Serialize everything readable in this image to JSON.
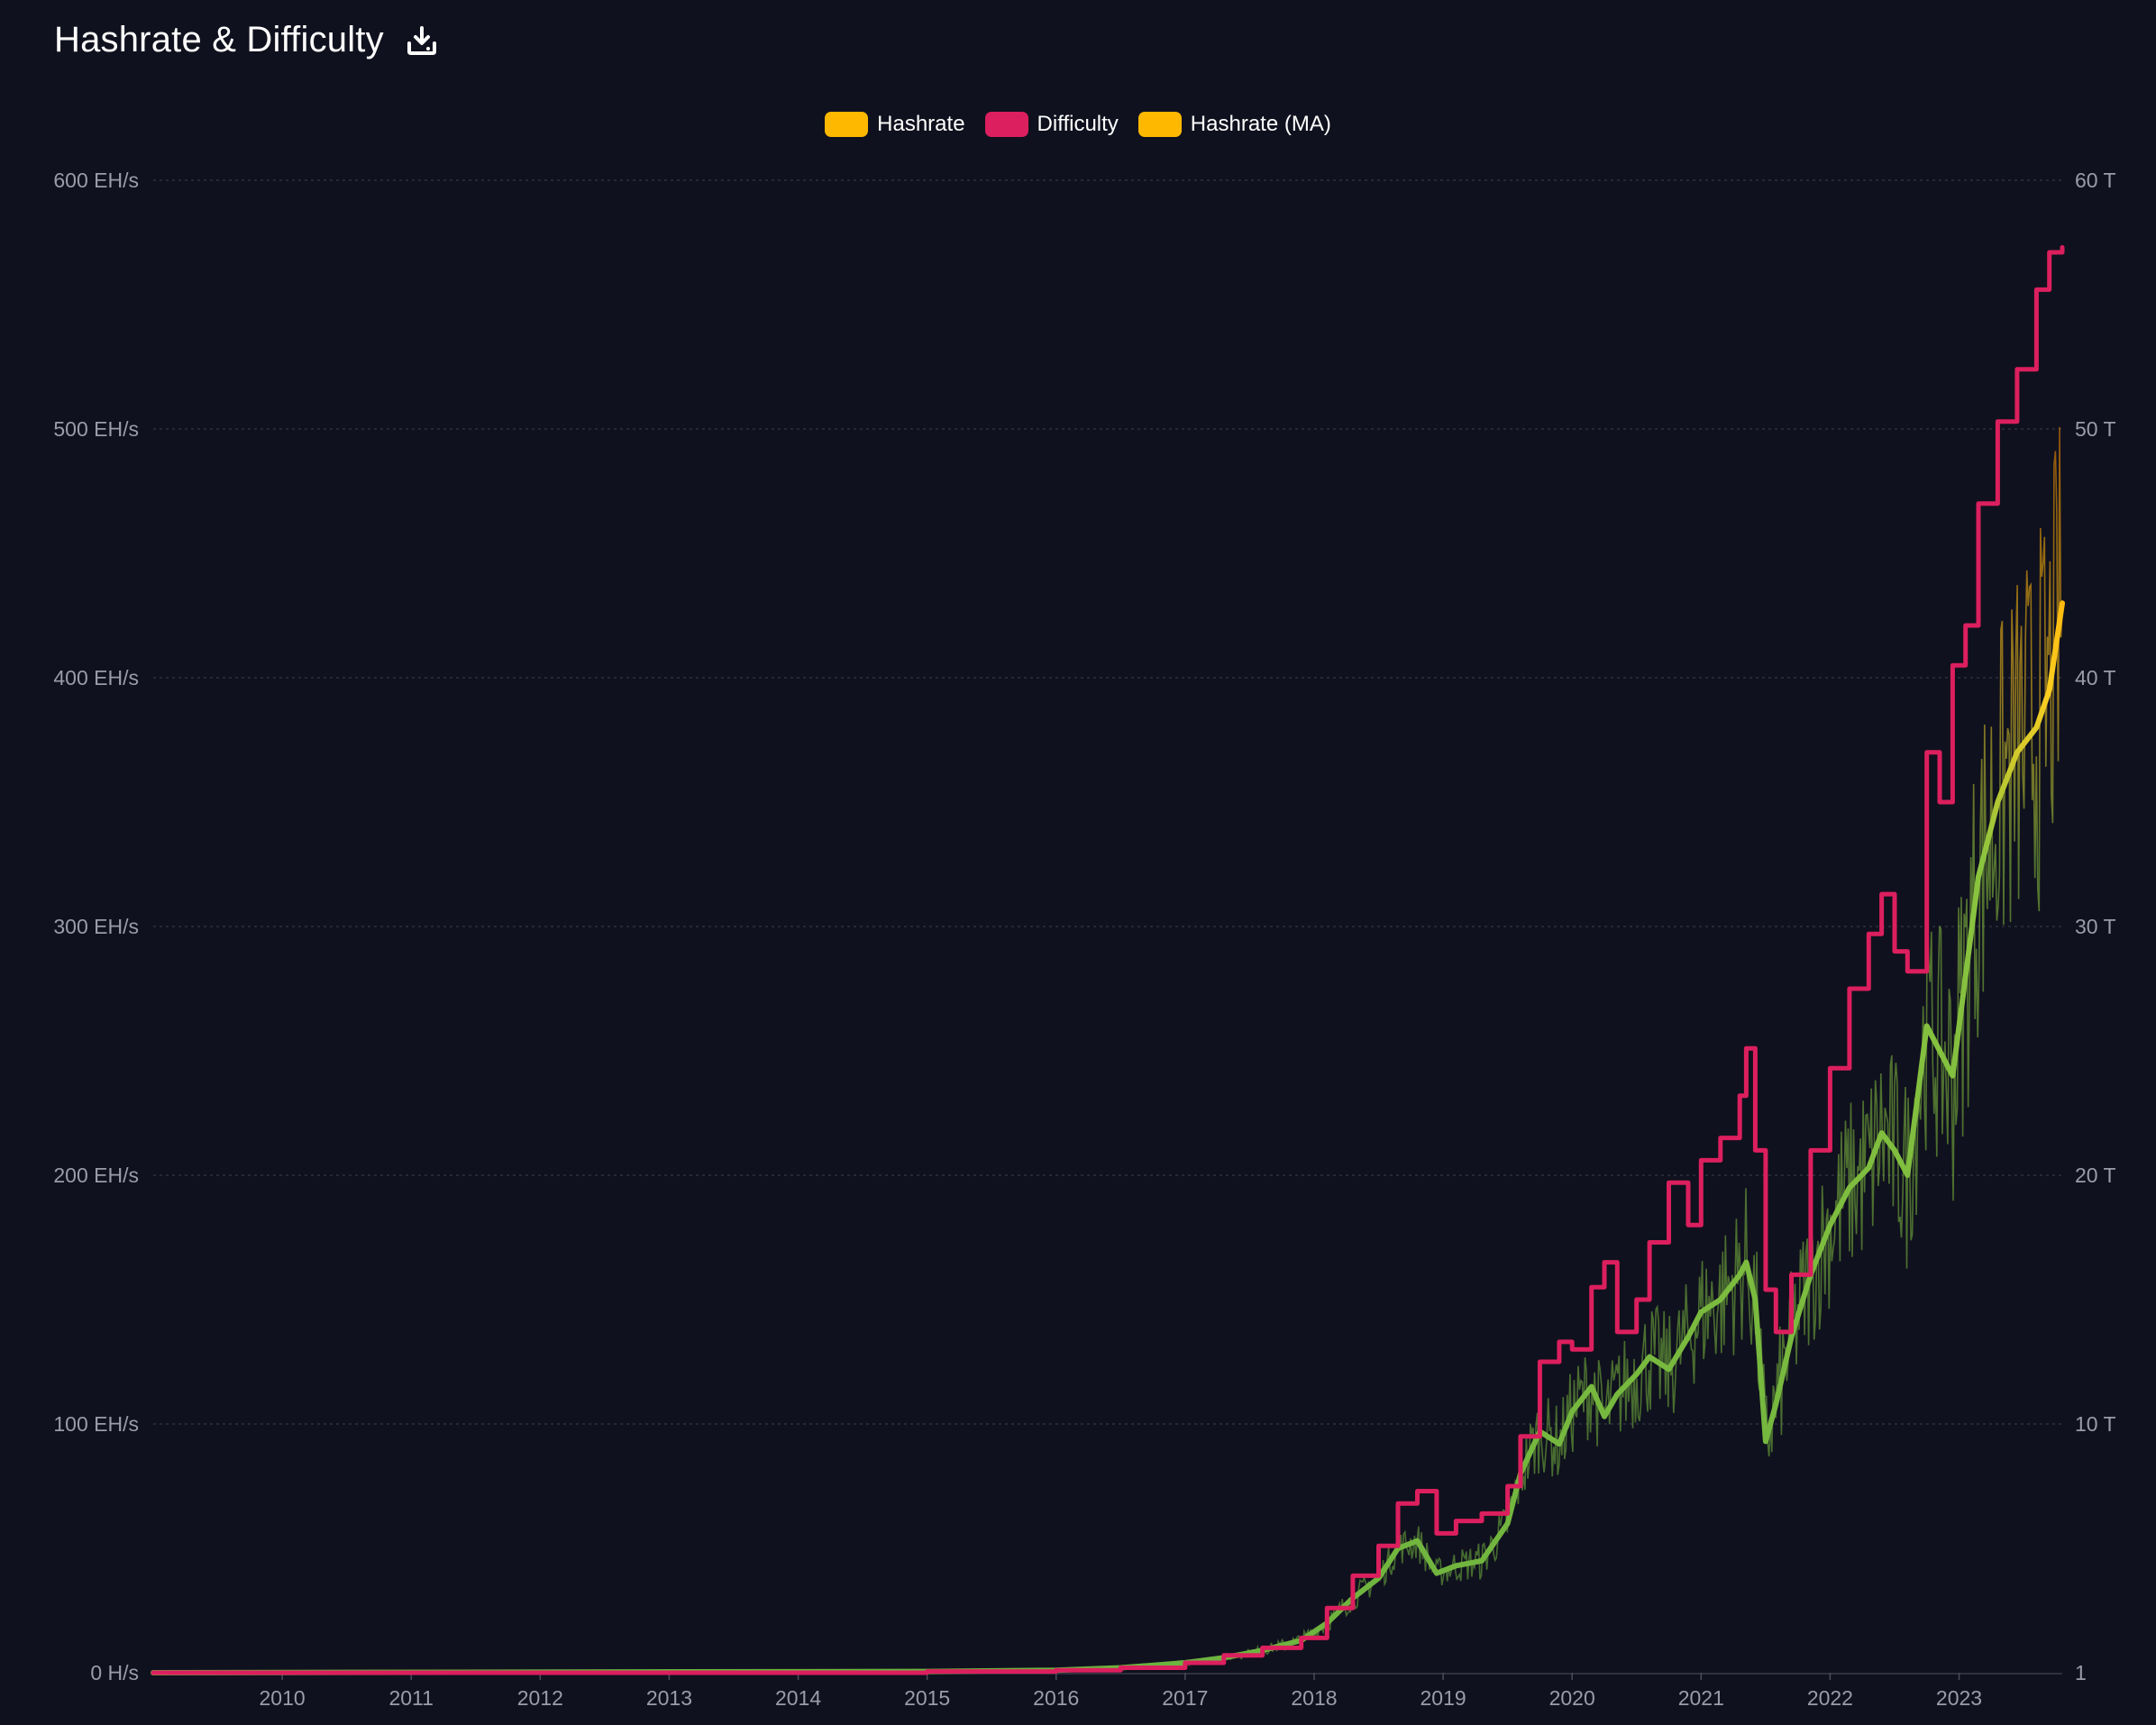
{
  "header": {
    "title": "Hashrate & Difficulty",
    "download_icon": "download-icon"
  },
  "colors": {
    "background": "#10111e",
    "hashrate": "#ffb800",
    "difficulty": "#dc1f5e",
    "hashrate_ma": "#ffb800",
    "grid": "#2e3040",
    "tick_text": "#9a9ca8"
  },
  "chart_data": {
    "type": "line",
    "legend": [
      {
        "name": "Hashrate",
        "color": "#ffb800"
      },
      {
        "name": "Difficulty",
        "color": "#dc1f5e"
      },
      {
        "name": "Hashrate (MA)",
        "color": "#ffb800"
      }
    ],
    "legend_position": "top-center",
    "grid": true,
    "x_range": [
      2009.0,
      2023.8
    ],
    "x_ticks": [
      "2010",
      "2011",
      "2012",
      "2013",
      "2014",
      "2015",
      "2016",
      "2017",
      "2018",
      "2019",
      "2020",
      "2021",
      "2022",
      "2023"
    ],
    "y_left": {
      "unit": "EH/s",
      "range": [
        0,
        600
      ],
      "ticks": [
        "0 H/s",
        "100 EH/s",
        "200 EH/s",
        "300 EH/s",
        "400 EH/s",
        "500 EH/s",
        "600 EH/s"
      ]
    },
    "y_right": {
      "unit": "T",
      "range": [
        0,
        60
      ],
      "ticks": [
        "1",
        "10 T",
        "20 T",
        "30 T",
        "40 T",
        "50 T",
        "60 T"
      ]
    },
    "series": [
      {
        "name": "Difficulty",
        "axis": "right",
        "x": [
          2009.0,
          2015.0,
          2016.0,
          2016.5,
          2017.0,
          2017.3,
          2017.6,
          2017.9,
          2018.1,
          2018.3,
          2018.5,
          2018.65,
          2018.8,
          2018.95,
          2019.1,
          2019.3,
          2019.5,
          2019.6,
          2019.75,
          2019.9,
          2020.0,
          2020.15,
          2020.25,
          2020.35,
          2020.5,
          2020.6,
          2020.75,
          2020.9,
          2021.0,
          2021.15,
          2021.3,
          2021.35,
          2021.42,
          2021.5,
          2021.58,
          2021.7,
          2021.85,
          2022.0,
          2022.15,
          2022.3,
          2022.4,
          2022.5,
          2022.6,
          2022.75,
          2022.85,
          2022.95,
          2023.05,
          2023.15,
          2023.3,
          2023.45,
          2023.6,
          2023.7,
          2023.8
        ],
        "values": [
          0.0,
          0.05,
          0.1,
          0.2,
          0.4,
          0.7,
          1.0,
          1.4,
          2.6,
          3.9,
          5.1,
          6.8,
          7.3,
          5.6,
          6.1,
          6.4,
          7.5,
          9.5,
          12.5,
          13.3,
          13.0,
          15.5,
          16.5,
          13.7,
          15.0,
          17.3,
          19.7,
          18.0,
          20.6,
          21.5,
          23.2,
          25.1,
          21.0,
          15.4,
          13.7,
          16.0,
          21.0,
          24.3,
          27.5,
          29.7,
          31.3,
          29.0,
          28.2,
          37.0,
          35.0,
          40.5,
          42.1,
          47.0,
          50.3,
          52.4,
          55.6,
          57.1,
          57.3
        ]
      },
      {
        "name": "Hashrate (MA)",
        "axis": "left",
        "x": [
          2009.0,
          2015.0,
          2016.0,
          2016.5,
          2017.0,
          2017.3,
          2017.6,
          2017.9,
          2018.1,
          2018.3,
          2018.5,
          2018.65,
          2018.8,
          2018.95,
          2019.1,
          2019.3,
          2019.5,
          2019.6,
          2019.75,
          2019.9,
          2020.0,
          2020.15,
          2020.25,
          2020.35,
          2020.5,
          2020.6,
          2020.75,
          2020.9,
          2021.0,
          2021.15,
          2021.3,
          2021.35,
          2021.42,
          2021.5,
          2021.58,
          2021.7,
          2021.85,
          2022.0,
          2022.15,
          2022.3,
          2022.4,
          2022.5,
          2022.6,
          2022.75,
          2022.85,
          2022.95,
          2023.05,
          2023.15,
          2023.3,
          2023.45,
          2023.6,
          2023.7,
          2023.8
        ],
        "values": [
          0,
          0.5,
          1,
          2,
          4,
          6,
          9,
          13,
          20,
          30,
          38,
          50,
          53,
          40,
          43,
          45,
          60,
          80,
          97,
          92,
          105,
          115,
          103,
          112,
          120,
          127,
          122,
          135,
          145,
          150,
          160,
          165,
          150,
          93,
          108,
          135,
          160,
          180,
          195,
          203,
          217,
          210,
          200,
          260,
          250,
          240,
          280,
          320,
          350,
          370,
          380,
          395,
          430
        ]
      },
      {
        "name": "Hashrate",
        "axis": "left",
        "x": [
          2009.0,
          2015.0,
          2016.0,
          2016.5,
          2017.0,
          2017.3,
          2017.6,
          2017.9,
          2018.1,
          2018.3,
          2018.5,
          2018.65,
          2018.8,
          2018.95,
          2019.1,
          2019.3,
          2019.5,
          2019.6,
          2019.75,
          2019.9,
          2020.0,
          2020.15,
          2020.25,
          2020.35,
          2020.5,
          2020.6,
          2020.75,
          2020.9,
          2021.0,
          2021.15,
          2021.3,
          2021.35,
          2021.42,
          2021.5,
          2021.58,
          2021.7,
          2021.85,
          2022.0,
          2022.15,
          2022.3,
          2022.4,
          2022.5,
          2022.6,
          2022.75,
          2022.85,
          2022.95,
          2023.05,
          2023.15,
          2023.3,
          2023.45,
          2023.6,
          2023.7,
          2023.8
        ],
        "values": [
          0,
          0.5,
          1,
          2,
          4,
          6,
          9,
          13,
          20,
          30,
          38,
          50,
          53,
          40,
          43,
          45,
          60,
          80,
          97,
          92,
          105,
          115,
          103,
          112,
          120,
          127,
          122,
          135,
          145,
          150,
          160,
          165,
          150,
          93,
          108,
          135,
          160,
          180,
          195,
          203,
          217,
          210,
          200,
          260,
          250,
          240,
          280,
          320,
          350,
          370,
          380,
          395,
          430
        ],
        "noise_amplitude": [
          0,
          0,
          0.3,
          0.5,
          1,
          1.5,
          2,
          3,
          4,
          5,
          6,
          7,
          8,
          6,
          7,
          8,
          10,
          14,
          16,
          16,
          18,
          20,
          18,
          20,
          22,
          24,
          22,
          24,
          26,
          28,
          30,
          32,
          30,
          22,
          24,
          28,
          30,
          34,
          36,
          38,
          40,
          40,
          40,
          48,
          50,
          55,
          60,
          65,
          70,
          75,
          78,
          80,
          85
        ]
      }
    ]
  }
}
